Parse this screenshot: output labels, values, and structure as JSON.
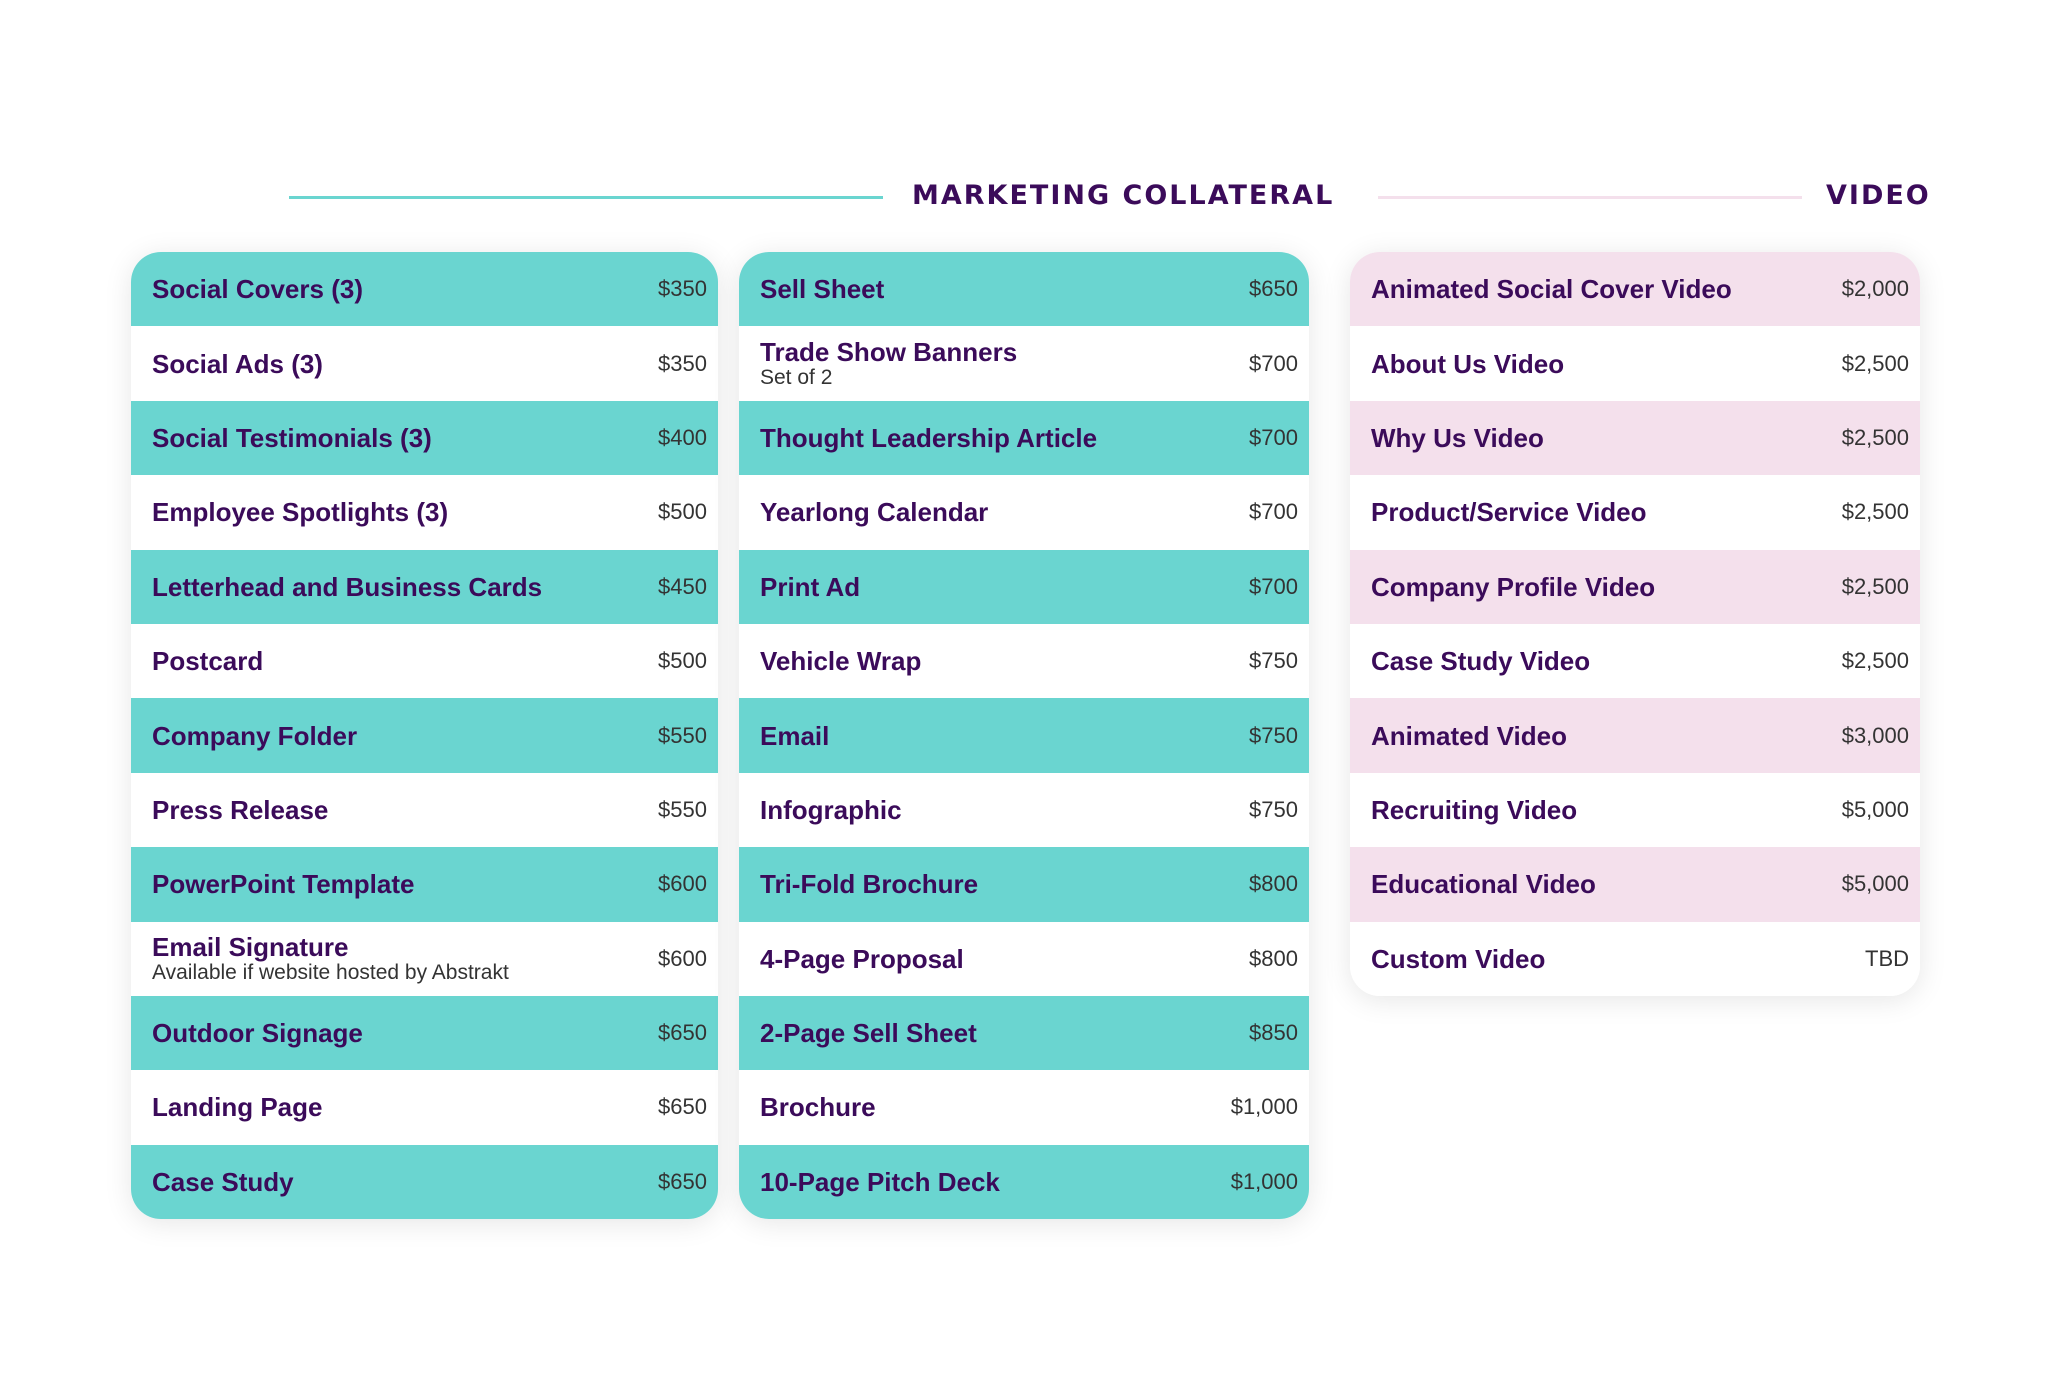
{
  "headings": {
    "marketing": "MARKETING COLLATERAL",
    "video": "VIDEO"
  },
  "colors": {
    "teal": "#6AD5D0",
    "pink": "#F4E0EC",
    "purple": "#3B0B5A",
    "white": "#FFFFFF"
  },
  "marketing_col1": [
    {
      "name": "Social Covers (3)",
      "price": "$350"
    },
    {
      "name": "Social Ads (3)",
      "price": "$350"
    },
    {
      "name": "Social Testimonials (3)",
      "price": "$400"
    },
    {
      "name": "Employee Spotlights (3)",
      "price": "$500"
    },
    {
      "name": "Letterhead and Business Cards",
      "price": "$450"
    },
    {
      "name": "Postcard",
      "price": "$500"
    },
    {
      "name": "Company Folder",
      "price": "$550"
    },
    {
      "name": "Press Release",
      "price": "$550"
    },
    {
      "name": "PowerPoint Template",
      "price": "$600"
    },
    {
      "name": "Email Signature",
      "sub": "Available if website hosted by Abstrakt",
      "price": "$600"
    },
    {
      "name": "Outdoor Signage",
      "price": "$650"
    },
    {
      "name": "Landing Page",
      "price": "$650"
    },
    {
      "name": "Case Study",
      "price": "$650"
    }
  ],
  "marketing_col2": [
    {
      "name": "Sell Sheet",
      "price": "$650"
    },
    {
      "name": "Trade Show Banners",
      "sub": "Set of 2",
      "price": "$700"
    },
    {
      "name": "Thought Leadership Article",
      "price": "$700"
    },
    {
      "name": "Yearlong Calendar",
      "price": "$700"
    },
    {
      "name": "Print Ad",
      "price": "$700"
    },
    {
      "name": "Vehicle Wrap",
      "price": "$750"
    },
    {
      "name": "Email",
      "price": "$750"
    },
    {
      "name": "Infographic",
      "price": "$750"
    },
    {
      "name": "Tri-Fold Brochure",
      "price": "$800"
    },
    {
      "name": "4-Page Proposal",
      "price": "$800"
    },
    {
      "name": "2-Page Sell Sheet",
      "price": "$850"
    },
    {
      "name": "Brochure",
      "price": "$1,000"
    },
    {
      "name": "10-Page Pitch Deck",
      "price": "$1,000"
    }
  ],
  "video": [
    {
      "name": "Animated Social Cover Video",
      "price": "$2,000"
    },
    {
      "name": "About Us Video",
      "price": "$2,500"
    },
    {
      "name": "Why Us Video",
      "price": "$2,500"
    },
    {
      "name": "Product/Service Video",
      "price": "$2,500"
    },
    {
      "name": "Company Profile Video",
      "price": "$2,500"
    },
    {
      "name": "Case Study Video",
      "price": "$2,500"
    },
    {
      "name": "Animated Video",
      "price": "$3,000"
    },
    {
      "name": "Recruiting Video",
      "price": "$5,000"
    },
    {
      "name": "Educational Video",
      "price": "$5,000"
    },
    {
      "name": "Custom Video",
      "price": "TBD"
    }
  ]
}
